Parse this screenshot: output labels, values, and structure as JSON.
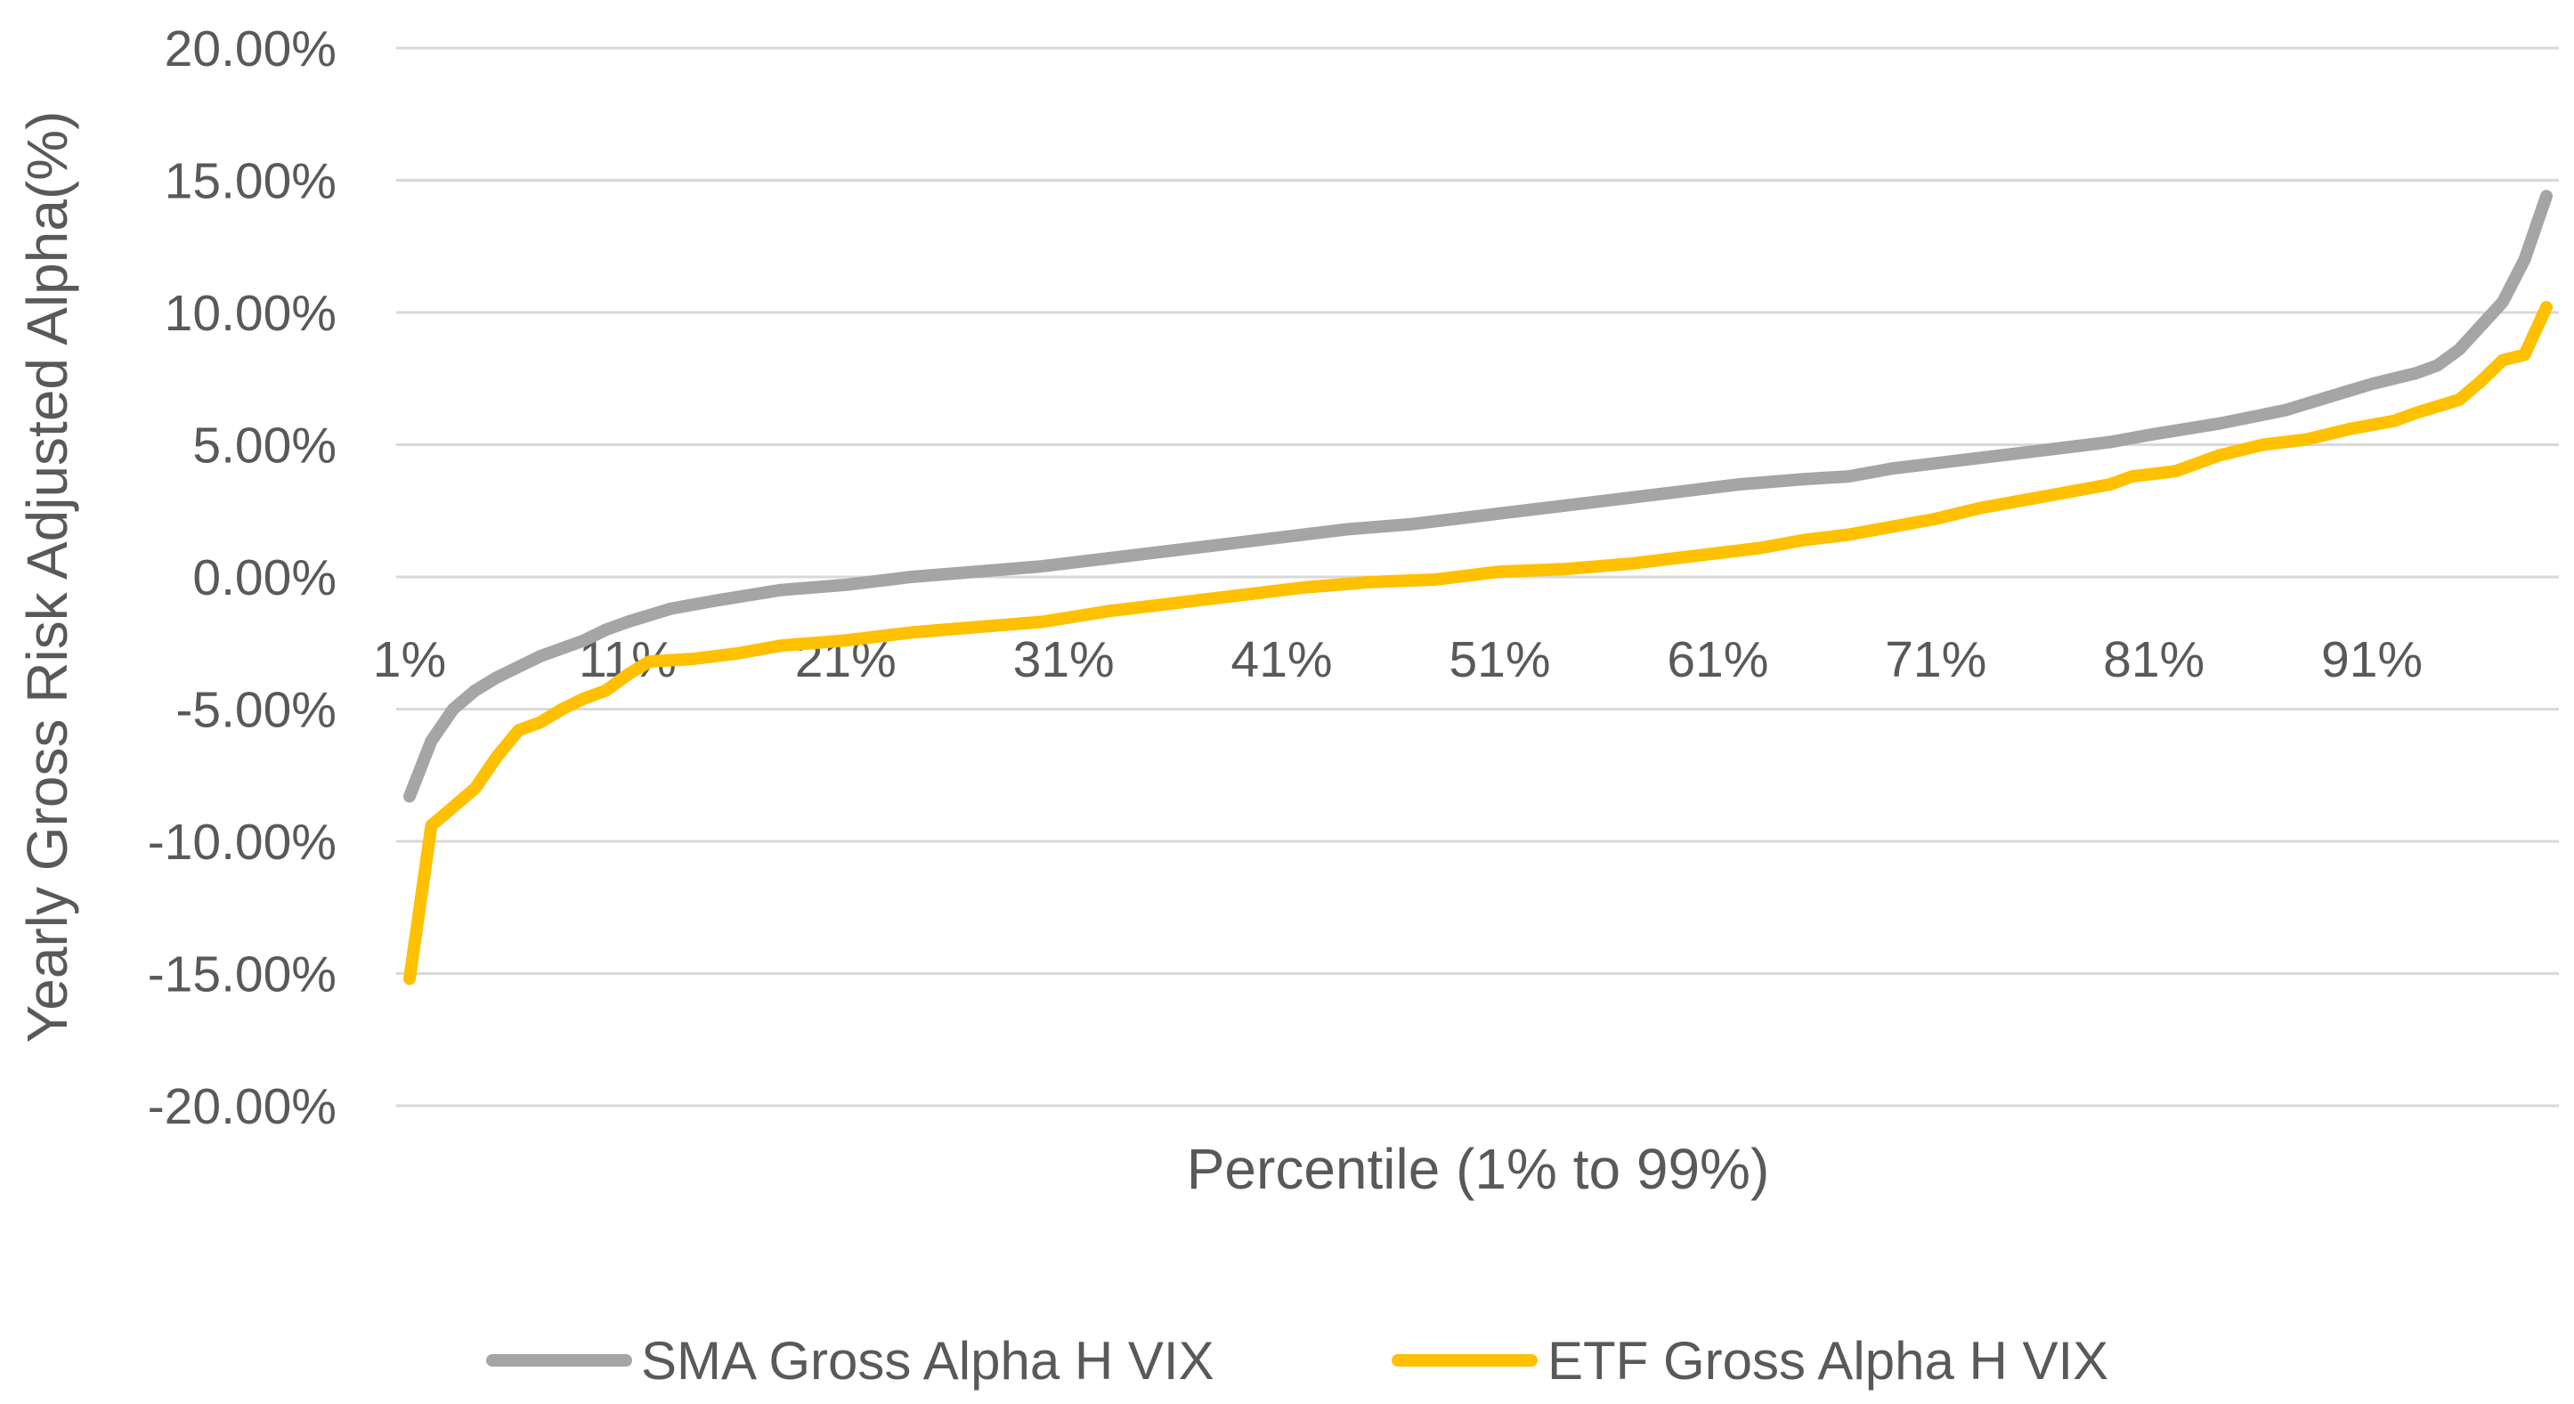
{
  "chart_data": {
    "type": "line",
    "title": "",
    "xlabel": "Percentile (1% to 99%)",
    "ylabel": "Yearly Gross Risk Adjusted Alpha(%)",
    "ylim": [
      -0.2,
      0.2
    ],
    "yticks": [
      0.2,
      0.15,
      0.1,
      0.05,
      0.0,
      -0.05,
      -0.1,
      -0.15,
      -0.2
    ],
    "ytick_labels": [
      "20.00%",
      "15.00%",
      "10.00%",
      "5.00%",
      "0.00%",
      "-5.00%",
      "-10.00%",
      "-15.00%",
      "-20.00%"
    ],
    "x_range": [
      1,
      99
    ],
    "xticks": [
      1,
      11,
      21,
      31,
      41,
      51,
      61,
      71,
      81,
      91
    ],
    "xtick_labels": [
      "1%",
      "11%",
      "21%",
      "31%",
      "41%",
      "51%",
      "61%",
      "71%",
      "81%",
      "91%"
    ],
    "gridlines": "horizontal",
    "legend_position": "bottom",
    "series": [
      {
        "name": "SMA Gross Alpha H VIX",
        "color": "#A5A5A5",
        "points": [
          [
            1,
            -0.083
          ],
          [
            2,
            -0.062
          ],
          [
            3,
            -0.05
          ],
          [
            4,
            -0.043
          ],
          [
            5,
            -0.038
          ],
          [
            6,
            -0.034
          ],
          [
            7,
            -0.03
          ],
          [
            8,
            -0.027
          ],
          [
            9,
            -0.024
          ],
          [
            10,
            -0.02
          ],
          [
            11,
            -0.017
          ],
          [
            13,
            -0.012
          ],
          [
            15,
            -0.009
          ],
          [
            18,
            -0.005
          ],
          [
            21,
            -0.003
          ],
          [
            24,
            0.0
          ],
          [
            27,
            0.002
          ],
          [
            30,
            0.004
          ],
          [
            33,
            0.007
          ],
          [
            36,
            0.01
          ],
          [
            38,
            0.012
          ],
          [
            41,
            0.015
          ],
          [
            44,
            0.018
          ],
          [
            47,
            0.02
          ],
          [
            49,
            0.022
          ],
          [
            51,
            0.024
          ],
          [
            53,
            0.026
          ],
          [
            56,
            0.029
          ],
          [
            59,
            0.032
          ],
          [
            62,
            0.035
          ],
          [
            65,
            0.037
          ],
          [
            67,
            0.038
          ],
          [
            69,
            0.041
          ],
          [
            71,
            0.043
          ],
          [
            74,
            0.046
          ],
          [
            77,
            0.049
          ],
          [
            79,
            0.051
          ],
          [
            81,
            0.054
          ],
          [
            84,
            0.058
          ],
          [
            87,
            0.063
          ],
          [
            89,
            0.068
          ],
          [
            91,
            0.073
          ],
          [
            93,
            0.077
          ],
          [
            94,
            0.08
          ],
          [
            95,
            0.086
          ],
          [
            96,
            0.095
          ],
          [
            97,
            0.104
          ],
          [
            98,
            0.12
          ],
          [
            99,
            0.144
          ]
        ]
      },
      {
        "name": "ETF Gross Alpha H VIX",
        "color": "#FFC000",
        "points": [
          [
            1,
            -0.152
          ],
          [
            2,
            -0.094
          ],
          [
            3,
            -0.087
          ],
          [
            4,
            -0.08
          ],
          [
            5,
            -0.068
          ],
          [
            6,
            -0.058
          ],
          [
            7,
            -0.055
          ],
          [
            8,
            -0.05
          ],
          [
            9,
            -0.046
          ],
          [
            10,
            -0.043
          ],
          [
            11,
            -0.037
          ],
          [
            12,
            -0.032
          ],
          [
            14,
            -0.031
          ],
          [
            16,
            -0.029
          ],
          [
            18,
            -0.026
          ],
          [
            21,
            -0.024
          ],
          [
            24,
            -0.021
          ],
          [
            27,
            -0.019
          ],
          [
            30,
            -0.017
          ],
          [
            33,
            -0.013
          ],
          [
            36,
            -0.01
          ],
          [
            39,
            -0.007
          ],
          [
            42,
            -0.004
          ],
          [
            45,
            -0.002
          ],
          [
            48,
            -0.001
          ],
          [
            51,
            0.002
          ],
          [
            54,
            0.003
          ],
          [
            57,
            0.005
          ],
          [
            60,
            0.008
          ],
          [
            63,
            0.011
          ],
          [
            65,
            0.014
          ],
          [
            67,
            0.016
          ],
          [
            69,
            0.019
          ],
          [
            71,
            0.022
          ],
          [
            73,
            0.026
          ],
          [
            75,
            0.029
          ],
          [
            77,
            0.032
          ],
          [
            79,
            0.035
          ],
          [
            80,
            0.038
          ],
          [
            82,
            0.04
          ],
          [
            84,
            0.046
          ],
          [
            86,
            0.05
          ],
          [
            88,
            0.052
          ],
          [
            90,
            0.056
          ],
          [
            92,
            0.059
          ],
          [
            93,
            0.062
          ],
          [
            95,
            0.067
          ],
          [
            96,
            0.074
          ],
          [
            97,
            0.082
          ],
          [
            98,
            0.084
          ],
          [
            99,
            0.102
          ]
        ]
      }
    ]
  }
}
